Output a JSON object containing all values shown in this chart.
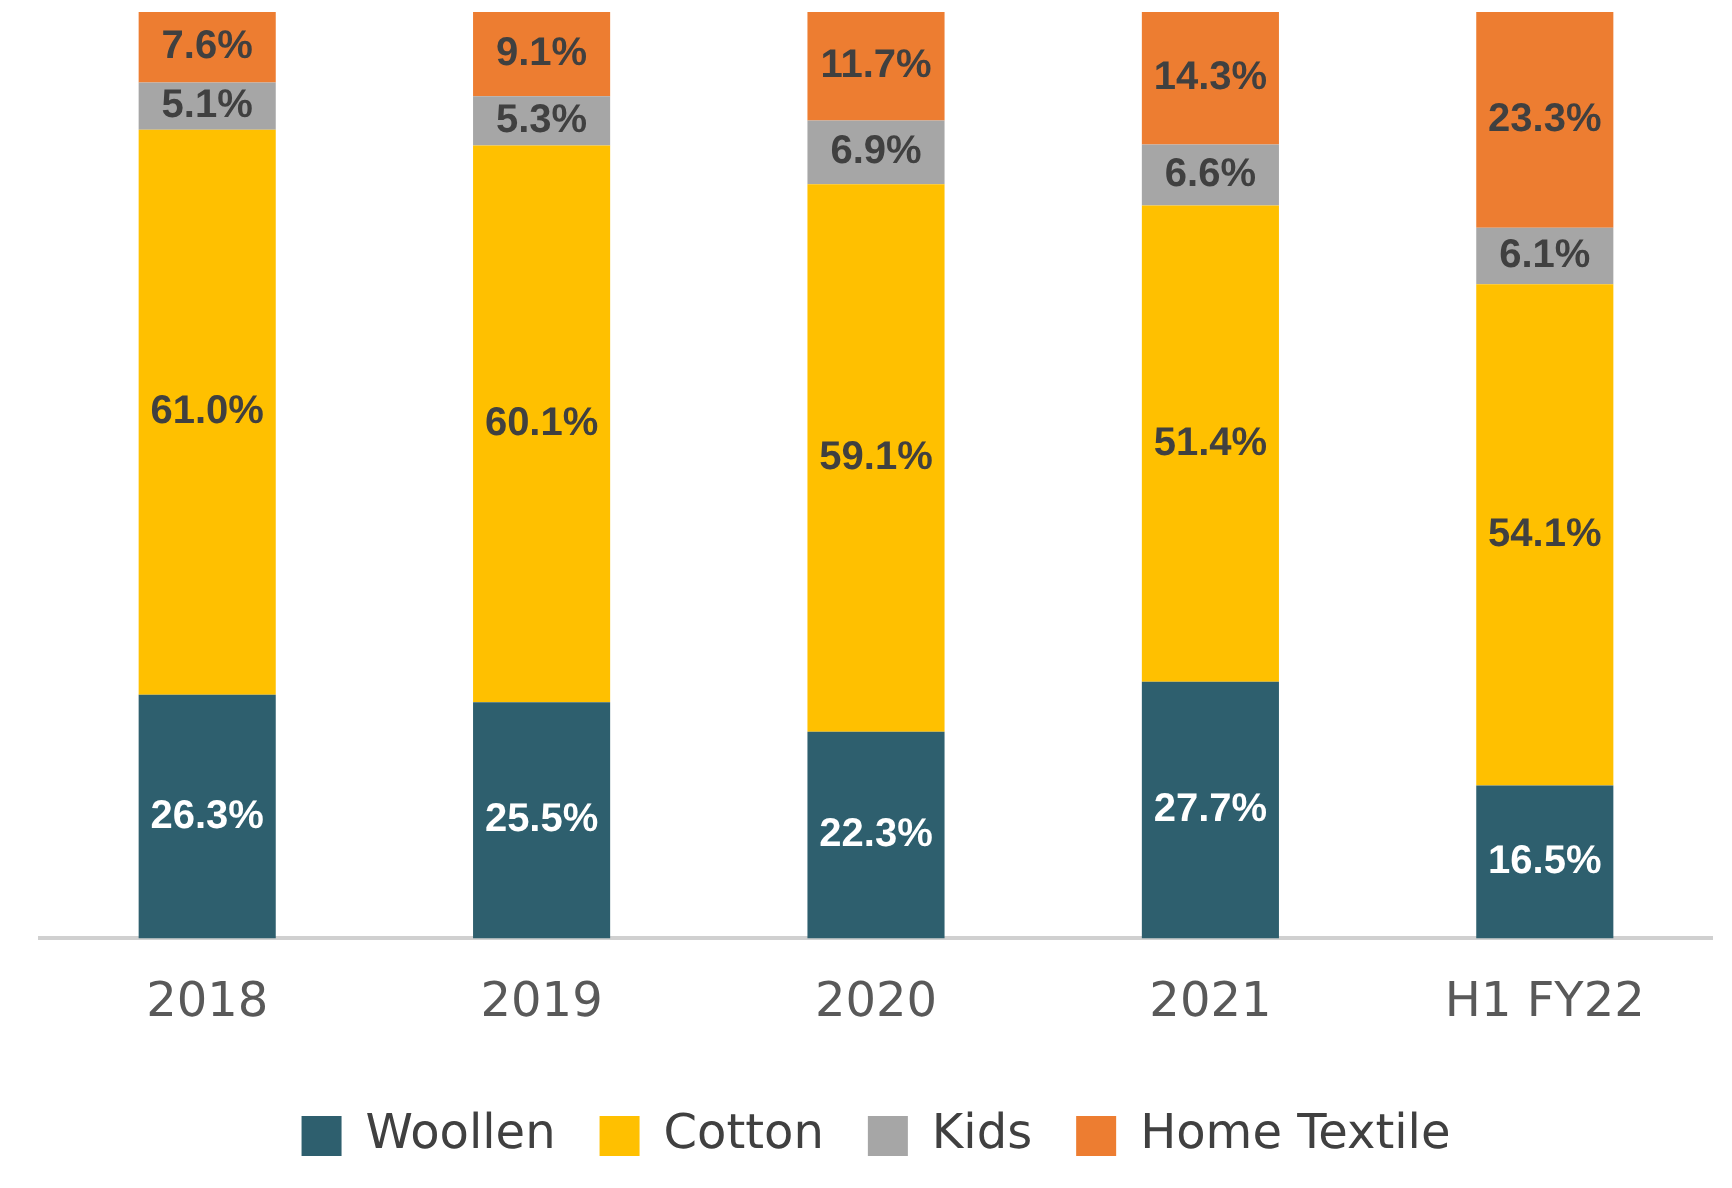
{
  "chart_data": {
    "type": "bar",
    "stacked": true,
    "categories": [
      "2018",
      "2019",
      "2020",
      "2021",
      "H1 FY22"
    ],
    "ylim": [
      0,
      100
    ],
    "tick_labels": "x",
    "grid": false,
    "legend": "bottom",
    "series": [
      {
        "name": "Woollen",
        "color": "#2e5f6e",
        "values": [
          26.3,
          25.5,
          22.3,
          27.7,
          16.5
        ],
        "value_labels": [
          "26.3%",
          "25.5%",
          "22.3%",
          "27.7%",
          "16.5%"
        ]
      },
      {
        "name": "Cotton",
        "color": "#ffc000",
        "values": [
          61.0,
          60.1,
          59.1,
          51.4,
          54.1
        ],
        "value_labels": [
          "61.0%",
          "60.1%",
          "59.1%",
          "51.4%",
          "54.1%"
        ]
      },
      {
        "name": "Kids",
        "color": "#a6a6a6",
        "values": [
          5.1,
          5.3,
          6.9,
          6.6,
          6.1
        ],
        "value_labels": [
          "5.1%",
          "5.3%",
          "6.9%",
          "6.6%",
          "6.1%"
        ]
      },
      {
        "name": "Home Textile",
        "color": "#ed7d31",
        "values": [
          7.6,
          9.1,
          11.7,
          14.3,
          23.3
        ],
        "value_labels": [
          "7.6%",
          "9.1%",
          "11.7%",
          "14.3%",
          "23.3%"
        ]
      }
    ]
  }
}
